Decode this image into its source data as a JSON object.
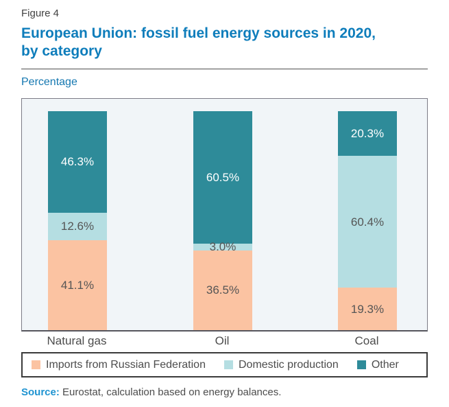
{
  "figure": {
    "label": "Figure 4",
    "title_lines": [
      "European Union: fossil fuel energy sources in 2020,",
      "by category"
    ],
    "axis_label": "Percentage"
  },
  "chart_data": {
    "type": "bar",
    "stacked": true,
    "title": "European Union: fossil fuel energy sources in 2020, by category",
    "ylabel": "Percentage",
    "ylim": [
      0,
      100
    ],
    "grid": false,
    "legend_position": "bottom",
    "value_suffix": "%",
    "value_decimals": 1,
    "categories": [
      "Natural gas",
      "Oil",
      "Coal"
    ],
    "series": [
      {
        "name": "Imports from Russian Federation",
        "color": "#FBC3A2",
        "label_color": "#555555",
        "values": [
          41.1,
          36.5,
          19.3
        ]
      },
      {
        "name": "Domestic production",
        "color": "#B5DEE2",
        "label_color": "#555555",
        "values": [
          12.6,
          3.0,
          60.4
        ]
      },
      {
        "name": "Other",
        "color": "#2E8B99",
        "label_color": "#FFFFFF",
        "values": [
          46.3,
          60.5,
          20.3
        ]
      }
    ]
  },
  "source": {
    "label": "Source:",
    "text": " Eurostat, calculation based on energy balances."
  },
  "colors": {
    "title_blue": "#0E7DBB",
    "axis_label_blue": "#1477B0",
    "source_blue": "#2094D1",
    "plot_background": "#F1F5F8",
    "text_gray": "#4C4C4C",
    "imports_peach": "#FBC3A2",
    "domestic_light_blue": "#B5DEE2",
    "other_teal": "#2E8B99"
  }
}
